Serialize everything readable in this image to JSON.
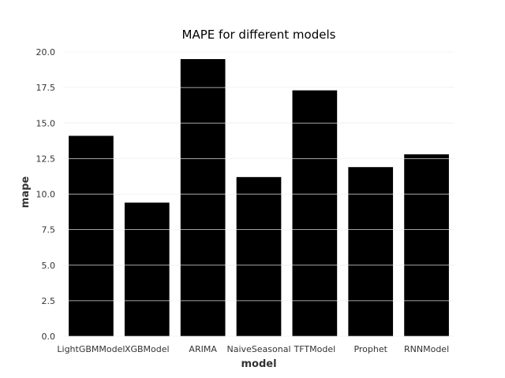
{
  "chart_data": {
    "type": "bar",
    "title": "MAPE for different models",
    "xlabel": "model",
    "ylabel": "mape",
    "categories": [
      "LightGBMModel",
      "XGBModel",
      "ARIMA",
      "NaiveSeasonal",
      "TFTModel",
      "Prophet",
      "RNNModel"
    ],
    "values": [
      14.1,
      9.4,
      19.5,
      11.2,
      17.3,
      11.9,
      12.8
    ],
    "ylim": [
      0,
      20
    ],
    "yticks": [
      "0.0",
      "2.5",
      "5.0",
      "7.5",
      "10.0",
      "12.5",
      "15.0",
      "17.5",
      "20.0"
    ],
    "grid": true,
    "bar_color": "#000000",
    "grid_color": "#e0e0e0"
  }
}
